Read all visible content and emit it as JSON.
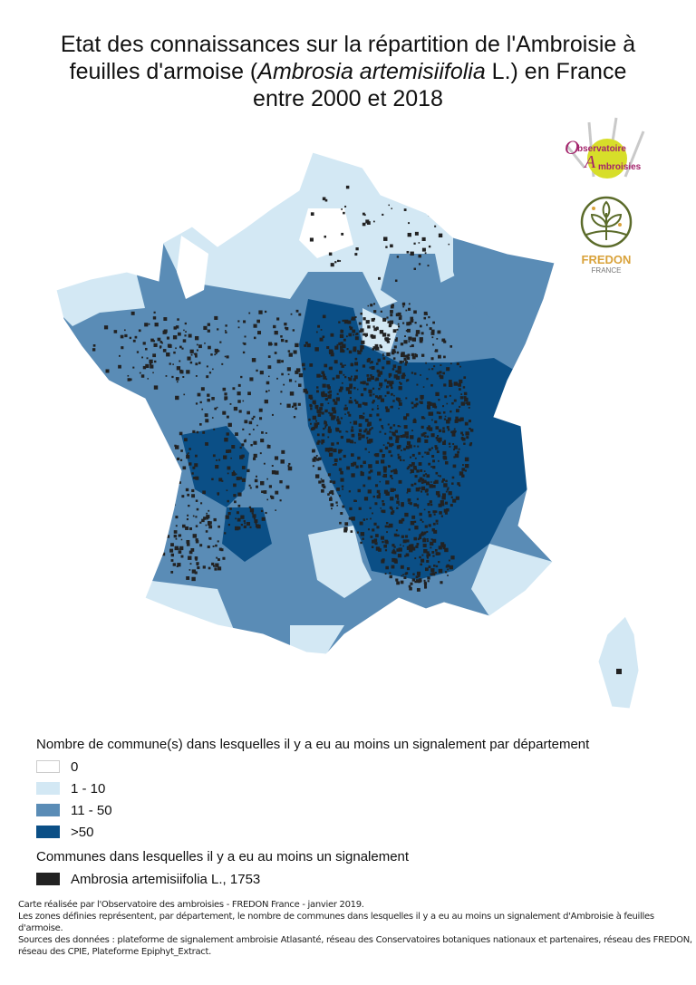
{
  "title": {
    "line1": "Etat des connaissances sur la répartition de l'Ambroisie à",
    "line2_pre": "feuilles d'armoise (",
    "line2_italic": "Ambrosia artemisiifolia",
    "line2_post": " L.) en France",
    "line3": "entre 2000 et 2018"
  },
  "logos": {
    "observatoire": "Observatoire des Ambroisies",
    "fredon": "FREDON",
    "fredon_sub": "FRANCE"
  },
  "colors": {
    "class_0": "#ffffff",
    "class_1_10": "#d3e8f4",
    "class_11_50": "#5a8cb6",
    "class_over_50": "#0b4f86",
    "signalement": "#222222"
  },
  "legend": {
    "heading1": "Nombre de commune(s) dans lesquelles il y a eu au moins un signalement par département",
    "classes": [
      {
        "label": "0",
        "color": "#ffffff"
      },
      {
        "label": "1 - 10",
        "color": "#d3e8f4"
      },
      {
        "label": "11 - 50",
        "color": "#5a8cb6"
      },
      {
        "label": ">50",
        "color": "#0b4f86"
      }
    ],
    "heading2": "Communes dans lesquelles il y a eu au moins un signalement",
    "species": {
      "label": "Ambrosia artemisiifolia L., 1753",
      "color": "#222222"
    }
  },
  "footer": {
    "line1": "Carte réalisée par l'Observatoire des ambroisies - FREDON France - janvier 2019.",
    "line2": "Les zones définies représentent, par département, le nombre de communes dans lesquelles il y a eu au moins un signalement d'Ambroisie à feuilles d'armoise.",
    "line3": "Sources des données : plateforme de signalement ambroisie Atlasanté, réseau des Conservatoires botaniques nationaux et partenaires, réseau des FREDON,",
    "line4": "réseau des CPIE, Plateforme Epiphyt_Extract."
  }
}
